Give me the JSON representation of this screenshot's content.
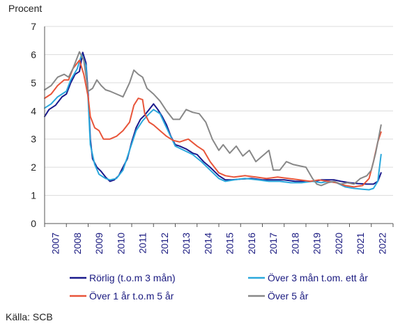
{
  "chart_data": {
    "type": "line",
    "ylabel": "Procent",
    "ylim": [
      0,
      7
    ],
    "yticks": [
      "0",
      "1",
      "2",
      "3",
      "4",
      "5",
      "6",
      "7"
    ],
    "xlim": [
      2007.0,
      2023.0
    ],
    "xticks": [
      "2007",
      "2008",
      "2009",
      "2010",
      "2011",
      "2012",
      "2013",
      "2014",
      "2015",
      "2016",
      "2017",
      "2018",
      "2019",
      "2020",
      "2021",
      "2022"
    ],
    "grid": "horizontal",
    "legend_position": "bottom",
    "source": "Källa: SCB",
    "series": [
      {
        "name": "Rörlig (t.o.m 3 mån)",
        "color": "#1a1a8c",
        "points": [
          [
            2007.0,
            3.8
          ],
          [
            2007.2,
            4.05
          ],
          [
            2007.5,
            4.2
          ],
          [
            2007.8,
            4.5
          ],
          [
            2008.0,
            4.6
          ],
          [
            2008.2,
            5.0
          ],
          [
            2008.4,
            5.3
          ],
          [
            2008.6,
            5.4
          ],
          [
            2008.75,
            6.08
          ],
          [
            2008.9,
            5.7
          ],
          [
            2009.0,
            4.6
          ],
          [
            2009.1,
            3.0
          ],
          [
            2009.2,
            2.3
          ],
          [
            2009.4,
            2.0
          ],
          [
            2009.6,
            1.85
          ],
          [
            2009.8,
            1.65
          ],
          [
            2010.0,
            1.5
          ],
          [
            2010.2,
            1.55
          ],
          [
            2010.4,
            1.7
          ],
          [
            2010.6,
            2.0
          ],
          [
            2010.8,
            2.3
          ],
          [
            2011.0,
            2.9
          ],
          [
            2011.2,
            3.4
          ],
          [
            2011.4,
            3.7
          ],
          [
            2011.6,
            3.85
          ],
          [
            2011.8,
            4.05
          ],
          [
            2012.0,
            4.25
          ],
          [
            2012.2,
            4.05
          ],
          [
            2012.4,
            3.8
          ],
          [
            2012.6,
            3.5
          ],
          [
            2012.8,
            3.1
          ],
          [
            2013.0,
            2.8
          ],
          [
            2013.2,
            2.75
          ],
          [
            2013.5,
            2.65
          ],
          [
            2013.8,
            2.5
          ],
          [
            2014.0,
            2.45
          ],
          [
            2014.3,
            2.2
          ],
          [
            2014.6,
            2.0
          ],
          [
            2015.0,
            1.7
          ],
          [
            2015.3,
            1.55
          ],
          [
            2015.6,
            1.55
          ],
          [
            2016.0,
            1.58
          ],
          [
            2016.5,
            1.6
          ],
          [
            2017.0,
            1.55
          ],
          [
            2017.5,
            1.55
          ],
          [
            2018.0,
            1.55
          ],
          [
            2018.5,
            1.5
          ],
          [
            2019.0,
            1.5
          ],
          [
            2019.4,
            1.5
          ],
          [
            2019.7,
            1.55
          ],
          [
            2020.0,
            1.55
          ],
          [
            2020.3,
            1.55
          ],
          [
            2020.6,
            1.5
          ],
          [
            2021.0,
            1.45
          ],
          [
            2021.4,
            1.42
          ],
          [
            2021.8,
            1.4
          ],
          [
            2022.1,
            1.4
          ],
          [
            2022.3,
            1.5
          ],
          [
            2022.45,
            1.8
          ]
        ]
      },
      {
        "name": "Över 3 mån t.om. ett år",
        "color": "#2aa8dc",
        "points": [
          [
            2007.0,
            4.1
          ],
          [
            2007.3,
            4.25
          ],
          [
            2007.6,
            4.5
          ],
          [
            2008.0,
            4.7
          ],
          [
            2008.2,
            5.1
          ],
          [
            2008.5,
            5.5
          ],
          [
            2008.7,
            6.0
          ],
          [
            2008.9,
            5.6
          ],
          [
            2009.0,
            4.4
          ],
          [
            2009.1,
            2.8
          ],
          [
            2009.3,
            2.1
          ],
          [
            2009.5,
            1.75
          ],
          [
            2009.8,
            1.6
          ],
          [
            2010.0,
            1.55
          ],
          [
            2010.3,
            1.6
          ],
          [
            2010.6,
            1.9
          ],
          [
            2010.9,
            2.6
          ],
          [
            2011.2,
            3.3
          ],
          [
            2011.5,
            3.65
          ],
          [
            2011.8,
            3.9
          ],
          [
            2012.0,
            4.05
          ],
          [
            2012.3,
            3.9
          ],
          [
            2012.6,
            3.4
          ],
          [
            2013.0,
            2.75
          ],
          [
            2013.4,
            2.6
          ],
          [
            2013.8,
            2.45
          ],
          [
            2014.2,
            2.2
          ],
          [
            2014.6,
            1.9
          ],
          [
            2015.0,
            1.6
          ],
          [
            2015.3,
            1.5
          ],
          [
            2015.7,
            1.55
          ],
          [
            2016.2,
            1.6
          ],
          [
            2016.8,
            1.55
          ],
          [
            2017.3,
            1.5
          ],
          [
            2017.8,
            1.5
          ],
          [
            2018.3,
            1.45
          ],
          [
            2018.8,
            1.45
          ],
          [
            2019.3,
            1.5
          ],
          [
            2019.7,
            1.45
          ],
          [
            2020.0,
            1.5
          ],
          [
            2020.4,
            1.45
          ],
          [
            2020.8,
            1.3
          ],
          [
            2021.2,
            1.25
          ],
          [
            2021.6,
            1.22
          ],
          [
            2021.9,
            1.2
          ],
          [
            2022.1,
            1.25
          ],
          [
            2022.3,
            1.5
          ],
          [
            2022.45,
            2.45
          ]
        ]
      },
      {
        "name": "Över 1 år t.o.m 5 år",
        "color": "#e8553a",
        "points": [
          [
            2007.0,
            4.45
          ],
          [
            2007.3,
            4.6
          ],
          [
            2007.6,
            4.9
          ],
          [
            2007.9,
            5.1
          ],
          [
            2008.1,
            5.1
          ],
          [
            2008.3,
            5.5
          ],
          [
            2008.6,
            5.8
          ],
          [
            2008.8,
            5.3
          ],
          [
            2009.0,
            4.5
          ],
          [
            2009.1,
            3.8
          ],
          [
            2009.3,
            3.4
          ],
          [
            2009.5,
            3.3
          ],
          [
            2009.7,
            3.0
          ],
          [
            2010.0,
            3.0
          ],
          [
            2010.3,
            3.1
          ],
          [
            2010.6,
            3.3
          ],
          [
            2010.9,
            3.6
          ],
          [
            2011.1,
            4.2
          ],
          [
            2011.3,
            4.45
          ],
          [
            2011.5,
            4.4
          ],
          [
            2011.6,
            3.9
          ],
          [
            2011.8,
            3.6
          ],
          [
            2012.0,
            3.5
          ],
          [
            2012.3,
            3.3
          ],
          [
            2012.6,
            3.1
          ],
          [
            2012.9,
            2.95
          ],
          [
            2013.2,
            2.9
          ],
          [
            2013.6,
            3.0
          ],
          [
            2014.0,
            2.75
          ],
          [
            2014.3,
            2.6
          ],
          [
            2014.6,
            2.2
          ],
          [
            2015.0,
            1.8
          ],
          [
            2015.3,
            1.7
          ],
          [
            2015.7,
            1.65
          ],
          [
            2016.2,
            1.7
          ],
          [
            2016.7,
            1.65
          ],
          [
            2017.2,
            1.6
          ],
          [
            2017.7,
            1.65
          ],
          [
            2018.2,
            1.6
          ],
          [
            2018.7,
            1.55
          ],
          [
            2019.2,
            1.5
          ],
          [
            2019.6,
            1.55
          ],
          [
            2020.0,
            1.5
          ],
          [
            2020.4,
            1.45
          ],
          [
            2020.8,
            1.35
          ],
          [
            2021.2,
            1.3
          ],
          [
            2021.6,
            1.35
          ],
          [
            2021.9,
            1.6
          ],
          [
            2022.1,
            2.2
          ],
          [
            2022.3,
            2.9
          ],
          [
            2022.45,
            3.25
          ]
        ]
      },
      {
        "name": "Över 5 år",
        "color": "#888888",
        "points": [
          [
            2007.0,
            4.75
          ],
          [
            2007.3,
            4.9
          ],
          [
            2007.6,
            5.2
          ],
          [
            2007.9,
            5.3
          ],
          [
            2008.1,
            5.2
          ],
          [
            2008.3,
            5.5
          ],
          [
            2008.6,
            6.1
          ],
          [
            2008.8,
            5.8
          ],
          [
            2009.0,
            4.7
          ],
          [
            2009.2,
            4.8
          ],
          [
            2009.4,
            5.1
          ],
          [
            2009.6,
            4.9
          ],
          [
            2009.8,
            4.75
          ],
          [
            2010.0,
            4.7
          ],
          [
            2010.3,
            4.6
          ],
          [
            2010.6,
            4.5
          ],
          [
            2010.9,
            5.0
          ],
          [
            2011.1,
            5.45
          ],
          [
            2011.3,
            5.3
          ],
          [
            2011.5,
            5.2
          ],
          [
            2011.7,
            4.8
          ],
          [
            2012.0,
            4.6
          ],
          [
            2012.3,
            4.35
          ],
          [
            2012.6,
            4.0
          ],
          [
            2012.9,
            3.7
          ],
          [
            2013.2,
            3.7
          ],
          [
            2013.5,
            4.05
          ],
          [
            2013.8,
            3.95
          ],
          [
            2014.1,
            3.9
          ],
          [
            2014.4,
            3.6
          ],
          [
            2014.7,
            3.0
          ],
          [
            2015.0,
            2.6
          ],
          [
            2015.2,
            2.8
          ],
          [
            2015.5,
            2.5
          ],
          [
            2015.8,
            2.75
          ],
          [
            2016.1,
            2.4
          ],
          [
            2016.4,
            2.6
          ],
          [
            2016.7,
            2.2
          ],
          [
            2017.0,
            2.4
          ],
          [
            2017.3,
            2.6
          ],
          [
            2017.5,
            1.9
          ],
          [
            2017.8,
            1.9
          ],
          [
            2018.1,
            2.2
          ],
          [
            2018.4,
            2.1
          ],
          [
            2018.7,
            2.05
          ],
          [
            2019.0,
            2.0
          ],
          [
            2019.3,
            1.6
          ],
          [
            2019.5,
            1.4
          ],
          [
            2019.7,
            1.35
          ],
          [
            2020.0,
            1.45
          ],
          [
            2020.3,
            1.5
          ],
          [
            2020.6,
            1.4
          ],
          [
            2020.9,
            1.45
          ],
          [
            2021.2,
            1.4
          ],
          [
            2021.5,
            1.6
          ],
          [
            2021.8,
            1.7
          ],
          [
            2022.0,
            1.9
          ],
          [
            2022.2,
            2.5
          ],
          [
            2022.35,
            3.1
          ],
          [
            2022.45,
            3.5
          ]
        ]
      }
    ]
  }
}
